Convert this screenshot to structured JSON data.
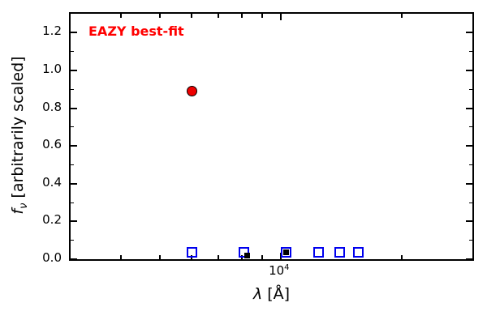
{
  "chart_data": {
    "type": "scatter",
    "title": "",
    "annotation": {
      "text": "EAZY best-fit",
      "color": "#ff0000"
    },
    "xlabel": {
      "lambda": "λ",
      "rest": " [Å]"
    },
    "ylabel": {
      "f": "f",
      "sub": "ν",
      "rest": " [arbitrarily scaled]"
    },
    "x_scale": "log",
    "xlim": [
      3000,
      30000
    ],
    "ylim": [
      0,
      1.3
    ],
    "axis_color": "#000000",
    "x_major_ticks": [
      {
        "value": 10000,
        "label_base": "10",
        "label_exp": "4"
      }
    ],
    "x_minor_ticks": [
      4000,
      5000,
      6000,
      7000,
      8000,
      9000,
      20000
    ],
    "y_major_ticks": [
      {
        "value": 0.0,
        "label": "0.0"
      },
      {
        "value": 0.2,
        "label": "0.2"
      },
      {
        "value": 0.4,
        "label": "0.4"
      },
      {
        "value": 0.6,
        "label": "0.6"
      },
      {
        "value": 0.8,
        "label": "0.8"
      },
      {
        "value": 1.0,
        "label": "1.0"
      },
      {
        "value": 1.2,
        "label": "1.2"
      }
    ],
    "y_minor_ticks": [
      0.1,
      0.3,
      0.5,
      0.7,
      0.9,
      1.1
    ],
    "series": [
      {
        "name": "template-photometry-squares",
        "marker": "square-open",
        "edge": "#0000ee",
        "size": 13,
        "points": [
          {
            "x": 6000,
            "y": 0.035
          },
          {
            "x": 8100,
            "y": 0.035
          },
          {
            "x": 10300,
            "y": 0.035
          },
          {
            "x": 12400,
            "y": 0.035
          },
          {
            "x": 14000,
            "y": 0.035
          },
          {
            "x": 15600,
            "y": 0.035
          }
        ]
      },
      {
        "name": "observed-photometry",
        "marker": "square-filled",
        "fill": "#000000",
        "size": 7,
        "points": [
          {
            "x": 8250,
            "y": 0.02
          },
          {
            "x": 10300,
            "y": 0.035
          }
        ]
      },
      {
        "name": "eazy-best-fit-point",
        "marker": "circle",
        "fill": "#ee0000",
        "edge": "#000000",
        "size": 13,
        "points": [
          {
            "x": 6000,
            "y": 0.89
          }
        ]
      }
    ]
  }
}
